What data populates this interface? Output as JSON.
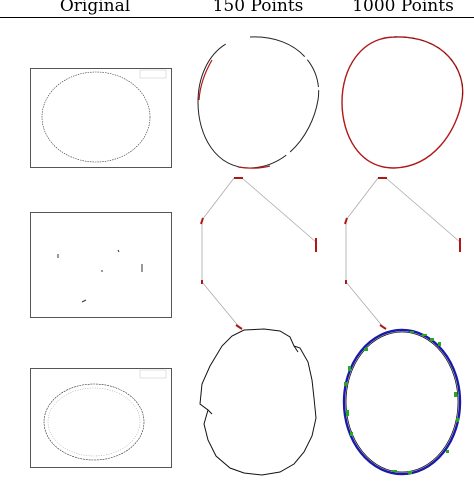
{
  "columns": {
    "original": "Original",
    "points_150": "150 Points",
    "points_1000": "1000 Points"
  },
  "rows": [
    {
      "id": "row-1",
      "shape": "ellipse",
      "points_1000_colors": [
        "#b01818",
        "#000000"
      ]
    },
    {
      "id": "row-2",
      "shape": "hexagon-fragments",
      "points_1000_colors": [
        "#b01818",
        "#000000"
      ]
    },
    {
      "id": "row-3",
      "shape": "irregular-ellipse",
      "points_1000_colors": [
        "#000000",
        "#1a1aa8",
        "#22aa22"
      ]
    }
  ],
  "colors": {
    "red_trace": "#b01818",
    "blue_trace": "#1a1aa8",
    "green_trace": "#22aa22"
  }
}
